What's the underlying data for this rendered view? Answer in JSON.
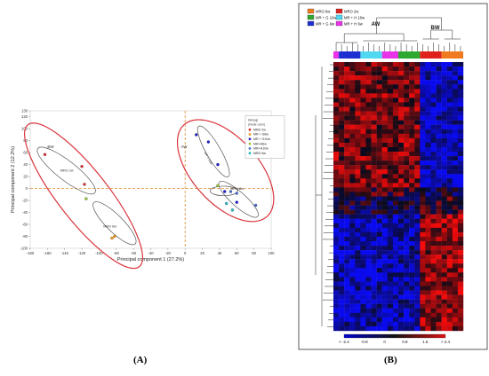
{
  "captions": {
    "a": "(A)",
    "b": "(B)"
  },
  "colors": {
    "ellipse_outer": "#d9363e",
    "ellipse_inner": "#555555",
    "zero_line": "#e08a2c",
    "heat_low": "#0000d0",
    "heat_mid": "#111111",
    "heat_high": "#e01010"
  },
  "chart_data": [
    {
      "type": "scatter",
      "title": "",
      "xlabel": "Principal component 1 (27.2%)",
      "ylabel": "Principal component 2 (12.2%)",
      "xlim": [
        -180,
        100
      ],
      "ylim": [
        -100,
        130
      ],
      "xticks": [
        "-180",
        "-160",
        "-140",
        "-120",
        "-100",
        "-80",
        "-60",
        "-40",
        "-20",
        "0",
        "20",
        "40",
        "60",
        "80",
        "100"
      ],
      "yticks": [
        "130",
        "120",
        "100",
        "80",
        "60",
        "40",
        "20",
        "0",
        "-20",
        "-40",
        "-60",
        "-80",
        "-100"
      ],
      "grid": false,
      "legend": {
        "title": "Group",
        "subtitle": "(Node color)",
        "placement": "top-right",
        "entries": [
          "MRO 2w",
          "MR + G6w",
          "MR + G10w",
          "MR+H6w",
          "MR+H10w",
          "MRO 6w"
        ]
      },
      "annotations": {
        "bw": "BW",
        "aw": "AW",
        "mro2w": "MRO 2w",
        "mro6w": "MRO 6w",
        "mrh10": "MR + H10w",
        "mrh6": "MR+H6w"
      },
      "series": [
        {
          "name": "MRO 2w",
          "color": "#d9363e",
          "x": [
            -163,
            -120,
            -117
          ],
          "y": [
            57,
            37,
            7
          ]
        },
        {
          "name": "MRO 6w",
          "color": "#e89a1e",
          "x": [
            -85,
            -82
          ],
          "y": [
            -83,
            -80
          ]
        },
        {
          "name": "MR + G6w",
          "color": "#2222cc",
          "x": [
            13,
            27,
            38,
            46,
            60
          ],
          "y": [
            90,
            78,
            40,
            -5,
            -23
          ]
        },
        {
          "name": "MR + G10w",
          "color": "#9bc13a",
          "x": [
            -115,
            38
          ],
          "y": [
            -17,
            5
          ]
        },
        {
          "name": "MR+H6w",
          "color": "#4a6fd0",
          "x": [
            53,
            60,
            82
          ],
          "y": [
            -5,
            -8,
            -28
          ]
        },
        {
          "name": "MR+H10w",
          "color": "#29b6c6",
          "x": [
            48,
            55
          ],
          "y": [
            -25,
            -36
          ]
        }
      ]
    },
    {
      "type": "heatmap",
      "title": "",
      "group_labels": {
        "aw": "AW",
        "bw": "BW"
      },
      "legend_entries": [
        {
          "label": "MRO 6w",
          "color": "#f07a1f"
        },
        {
          "label": "MRO 2w",
          "color": "#e0201a"
        },
        {
          "label": "MR + G 10w",
          "color": "#2fa82f"
        },
        {
          "label": "MR + H 10w",
          "color": "#4fd8f0"
        },
        {
          "label": "MR + G 6w",
          "color": "#1d2fd0"
        },
        {
          "label": "MR + H 6w",
          "color": "#e832e8"
        }
      ],
      "column_groups": [
        {
          "name": "MR + H 6w",
          "color": "#e832e8",
          "count": 1
        },
        {
          "name": "MR + G 6w",
          "color": "#1d2fd0",
          "count": 4
        },
        {
          "name": "MR + H 10w",
          "color": "#4fd8f0",
          "count": 4
        },
        {
          "name": "MR + H 6w",
          "color": "#e832e8",
          "count": 3
        },
        {
          "name": "MR + G 10w",
          "color": "#2fa82f",
          "count": 4
        },
        {
          "name": "MRO 2w",
          "color": "#e0201a",
          "count": 4
        },
        {
          "name": "MRO 6w",
          "color": "#f07a1f",
          "count": 4
        }
      ],
      "color_scale": {
        "min": -2.4,
        "max": 2.4,
        "ticks": [
          "< -2.4",
          "-0.8",
          "0",
          "0.8",
          "1.6",
          "> 2.4"
        ]
      }
    }
  ]
}
